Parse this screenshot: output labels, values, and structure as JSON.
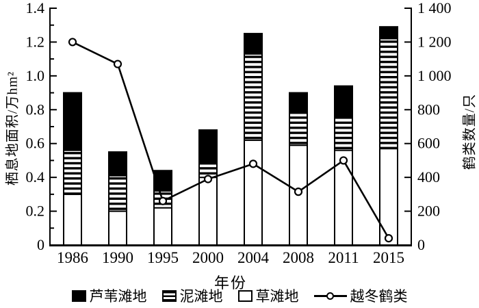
{
  "chart_data": {
    "type": "bar",
    "subtype": "stacked-bars-with-line",
    "categories": [
      "1986",
      "1990",
      "1995",
      "2000",
      "2004",
      "2008",
      "2011",
      "2015"
    ],
    "bar_series": [
      {
        "name": "草滩地",
        "style": "white",
        "values": [
          0.3,
          0.2,
          0.22,
          0.4,
          0.62,
          0.59,
          0.56,
          0.57
        ]
      },
      {
        "name": "泥滩地",
        "style": "hstripes",
        "values": [
          0.26,
          0.21,
          0.1,
          0.08,
          0.51,
          0.19,
          0.2,
          0.65
        ]
      },
      {
        "name": "芦苇滩地",
        "style": "black",
        "values": [
          0.34,
          0.14,
          0.12,
          0.2,
          0.12,
          0.12,
          0.18,
          0.07
        ]
      }
    ],
    "line_series": {
      "name": "越冬鹤类",
      "axis": "right",
      "values": [
        1200,
        1070,
        260,
        390,
        480,
        315,
        500,
        40
      ]
    },
    "left_axis": {
      "title": "栖息地面积/万hm²",
      "min": 0,
      "max": 1.4,
      "major_step": 0.2,
      "minor_step": 0.1,
      "tick_labels": [
        "0",
        "0.2",
        "0.4",
        "0.6",
        "0.8",
        "1.0",
        "1.2",
        "1.4"
      ]
    },
    "right_axis": {
      "title": "鹤类数量/只",
      "min": 0,
      "max": 1400,
      "major_step": 200,
      "tick_labels": [
        "0",
        "200",
        "400",
        "600",
        "800",
        "1 000",
        "1 200",
        "1 400"
      ]
    },
    "x_axis": {
      "title": "年份"
    },
    "legend_position": "bottom",
    "grid": false
  },
  "legend": {
    "items": [
      {
        "label": "芦苇滩地",
        "swatch": "black-square"
      },
      {
        "label": "泥滩地",
        "swatch": "striped-square"
      },
      {
        "label": "草滩地",
        "swatch": "white-square"
      },
      {
        "label": "越冬鹤类",
        "swatch": "line-circle"
      }
    ]
  },
  "colors": {
    "ink": "#000000",
    "background": "#ffffff"
  }
}
